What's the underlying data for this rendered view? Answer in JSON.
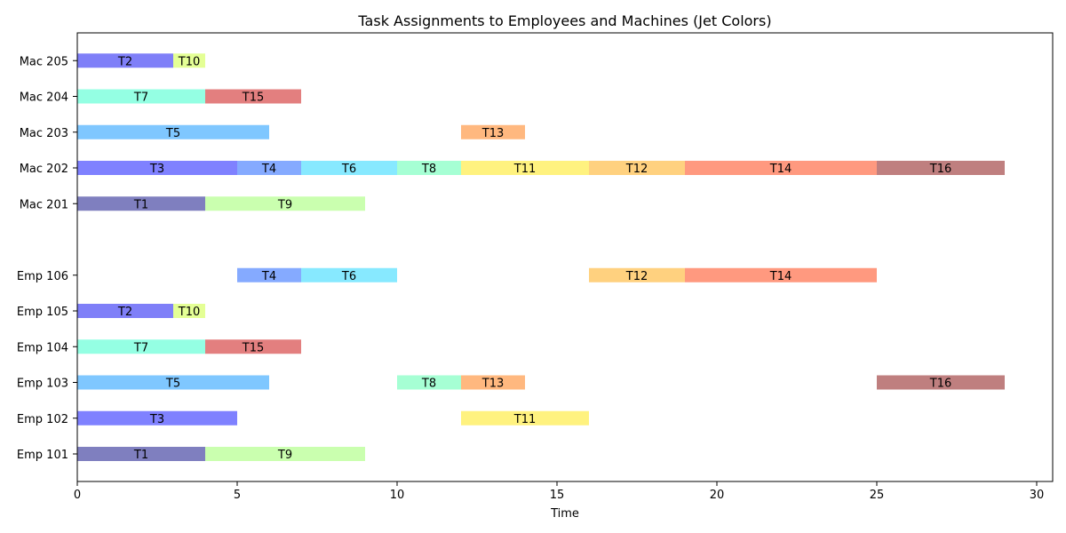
{
  "chart_data": {
    "type": "gantt",
    "title": "Task Assignments to Employees and Machines (Jet Colors)",
    "xlabel": "Time",
    "ylabel": "",
    "xlim": [
      0,
      30.5
    ],
    "xticks": [
      0,
      5,
      10,
      15,
      20,
      25,
      30
    ],
    "rows": [
      "Emp 101",
      "Emp 102",
      "Emp 103",
      "Emp 104",
      "Emp 105",
      "Emp 106",
      "",
      "Mac 201",
      "Mac 202",
      "Mac 203",
      "Mac 204",
      "Mac 205"
    ],
    "ytick_labels": [
      "Emp 101",
      "Emp 102",
      "Emp 103",
      "Emp 104",
      "Emp 105",
      "Emp 106",
      "Mac 201",
      "Mac 202",
      "Mac 203",
      "Mac 204",
      "Mac 205"
    ],
    "grid": false,
    "task_colors": {
      "T1": "#000080",
      "T2": "#0000f1",
      "T3": "#0004ff",
      "T4": "#0c55ff",
      "T5": "#0090ff",
      "T6": "#0fd3ff",
      "T7": "#29ffc8",
      "T8": "#4dffa9",
      "T9": "#96ff60",
      "T10": "#caff2c",
      "T11": "#ffe600",
      "T12": "#ffa400",
      "T13": "#ff7100",
      "T14": "#ff3400",
      "T15": "#c80000",
      "T16": "#800000"
    },
    "bar_opacity": 0.5,
    "bars": [
      {
        "row": "Emp 101",
        "task": "T1",
        "start": 0,
        "end": 4
      },
      {
        "row": "Emp 101",
        "task": "T9",
        "start": 4,
        "end": 9
      },
      {
        "row": "Emp 102",
        "task": "T3",
        "start": 0,
        "end": 5
      },
      {
        "row": "Emp 102",
        "task": "T11",
        "start": 12,
        "end": 16
      },
      {
        "row": "Emp 103",
        "task": "T5",
        "start": 0,
        "end": 6
      },
      {
        "row": "Emp 103",
        "task": "T8",
        "start": 10,
        "end": 12
      },
      {
        "row": "Emp 103",
        "task": "T13",
        "start": 12,
        "end": 14
      },
      {
        "row": "Emp 103",
        "task": "T16",
        "start": 25,
        "end": 29
      },
      {
        "row": "Emp 104",
        "task": "T7",
        "start": 0,
        "end": 4
      },
      {
        "row": "Emp 104",
        "task": "T15",
        "start": 4,
        "end": 7
      },
      {
        "row": "Emp 105",
        "task": "T2",
        "start": 0,
        "end": 3
      },
      {
        "row": "Emp 105",
        "task": "T10",
        "start": 3,
        "end": 4
      },
      {
        "row": "Emp 106",
        "task": "T4",
        "start": 5,
        "end": 7
      },
      {
        "row": "Emp 106",
        "task": "T6",
        "start": 7,
        "end": 10
      },
      {
        "row": "Emp 106",
        "task": "T12",
        "start": 16,
        "end": 19
      },
      {
        "row": "Emp 106",
        "task": "T14",
        "start": 19,
        "end": 25
      },
      {
        "row": "Mac 201",
        "task": "T1",
        "start": 0,
        "end": 4
      },
      {
        "row": "Mac 201",
        "task": "T9",
        "start": 4,
        "end": 9
      },
      {
        "row": "Mac 202",
        "task": "T3",
        "start": 0,
        "end": 5
      },
      {
        "row": "Mac 202",
        "task": "T4",
        "start": 5,
        "end": 7
      },
      {
        "row": "Mac 202",
        "task": "T6",
        "start": 7,
        "end": 10
      },
      {
        "row": "Mac 202",
        "task": "T8",
        "start": 10,
        "end": 12
      },
      {
        "row": "Mac 202",
        "task": "T11",
        "start": 12,
        "end": 16
      },
      {
        "row": "Mac 202",
        "task": "T12",
        "start": 16,
        "end": 19
      },
      {
        "row": "Mac 202",
        "task": "T14",
        "start": 19,
        "end": 25
      },
      {
        "row": "Mac 202",
        "task": "T16",
        "start": 25,
        "end": 29
      },
      {
        "row": "Mac 203",
        "task": "T5",
        "start": 0,
        "end": 6
      },
      {
        "row": "Mac 203",
        "task": "T13",
        "start": 12,
        "end": 14
      },
      {
        "row": "Mac 204",
        "task": "T7",
        "start": 0,
        "end": 4
      },
      {
        "row": "Mac 204",
        "task": "T15",
        "start": 4,
        "end": 7
      },
      {
        "row": "Mac 205",
        "task": "T2",
        "start": 0,
        "end": 3
      },
      {
        "row": "Mac 205",
        "task": "T10",
        "start": 3,
        "end": 4
      }
    ]
  }
}
